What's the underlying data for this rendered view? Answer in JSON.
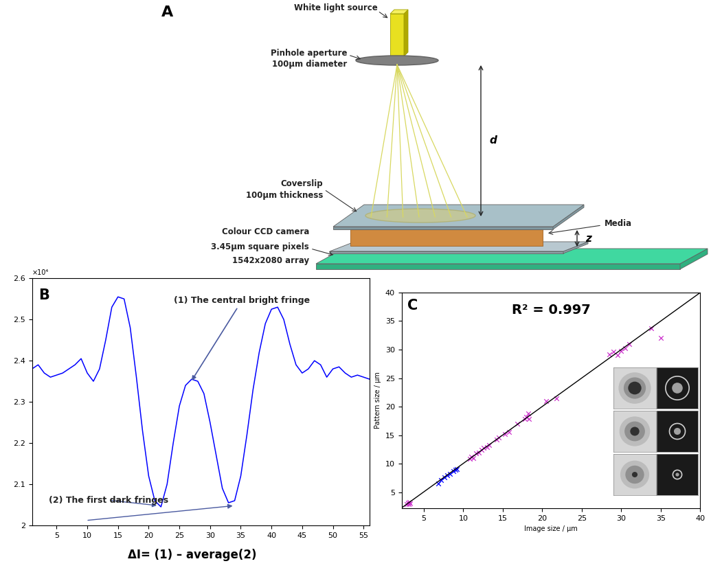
{
  "panel_a": {
    "label": "A",
    "source": "White light source",
    "pinhole": [
      "Pinhole aperture",
      "100µm diameter"
    ],
    "distance": "d",
    "coverslip": [
      "Coverslip",
      "100µm thickness"
    ],
    "media": "Media",
    "gap": "z",
    "camera": [
      "Colour CCD camera",
      "3.45µm square pixels",
      "1542x2080 array"
    ]
  },
  "chart_data": [
    {
      "type": "line",
      "panel_label": "B",
      "color": "#0000ff",
      "x": [
        1,
        2,
        3,
        4,
        5,
        6,
        7,
        8,
        9,
        10,
        11,
        12,
        13,
        14,
        15,
        16,
        17,
        18,
        19,
        20,
        21,
        22,
        23,
        24,
        25,
        26,
        27,
        28,
        29,
        30,
        31,
        32,
        33,
        34,
        35,
        36,
        37,
        38,
        39,
        40,
        41,
        42,
        43,
        44,
        45,
        46,
        47,
        48,
        49,
        50,
        51,
        52,
        53,
        54,
        55,
        56
      ],
      "values": [
        2.38,
        2.39,
        2.37,
        2.36,
        2.365,
        2.37,
        2.38,
        2.39,
        2.405,
        2.37,
        2.35,
        2.38,
        2.45,
        2.53,
        2.555,
        2.55,
        2.48,
        2.36,
        2.23,
        2.12,
        2.06,
        2.045,
        2.1,
        2.2,
        2.29,
        2.34,
        2.355,
        2.35,
        2.32,
        2.25,
        2.17,
        2.09,
        2.055,
        2.06,
        2.12,
        2.22,
        2.33,
        2.42,
        2.49,
        2.525,
        2.53,
        2.5,
        2.44,
        2.39,
        2.37,
        2.38,
        2.4,
        2.39,
        2.36,
        2.38,
        2.385,
        2.37,
        2.36,
        2.365,
        2.36,
        2.355
      ],
      "xlim": [
        1,
        56
      ],
      "xticks": [
        5,
        10,
        15,
        20,
        25,
        30,
        35,
        40,
        45,
        50,
        55
      ],
      "ylim": [
        2,
        2.6
      ],
      "yticks": [
        2,
        2.1,
        2.2,
        2.3,
        2.4,
        2.5,
        2.6
      ],
      "y_multiplier": "×10⁴",
      "annotations": [
        "(1) The central bright fringe",
        "(2) The first dark fringes"
      ],
      "formula": "ΔI= (1) – average(2)"
    },
    {
      "type": "scatter",
      "panel_label": "C",
      "annotation": "R² = 0.997",
      "x_label": "Image size / µm",
      "y_label": "Pattern size / µm",
      "xlim": [
        2.2,
        40
      ],
      "ylim": [
        2.2,
        40
      ],
      "xticks": [
        5,
        10,
        15,
        20,
        25,
        30,
        35,
        40
      ],
      "yticks": [
        5,
        10,
        15,
        20,
        25,
        30,
        35,
        40
      ],
      "series": [
        {
          "color": "#cc33cc",
          "marker": "x",
          "x": [
            2.8,
            3.0,
            3.1,
            3.2,
            3.3,
            10.8,
            11.0,
            11.3,
            11.6,
            12.0,
            12.3,
            12.6,
            13.0,
            13.3,
            14.2,
            14.5,
            15.3,
            15.8,
            16.8,
            17.8,
            18.0,
            18.2,
            18.3,
            20.5,
            21.8,
            28.5,
            29.0,
            29.5,
            30.0,
            30.5,
            31.0,
            33.8,
            35.0
          ],
          "values": [
            3.0,
            3.2,
            2.9,
            3.3,
            3.1,
            10.9,
            11.2,
            11.0,
            11.8,
            12.0,
            12.4,
            12.8,
            12.9,
            13.3,
            14.3,
            14.6,
            15.2,
            15.6,
            17.0,
            17.9,
            18.2,
            18.8,
            17.8,
            21.0,
            21.5,
            29.2,
            29.6,
            29.0,
            29.8,
            30.2,
            31.0,
            33.7,
            32.0
          ]
        },
        {
          "color": "#0000ff",
          "marker": "x",
          "x": [
            6.8,
            7.2,
            7.6,
            8.0,
            8.3,
            8.7,
            9.0,
            9.2
          ],
          "values": [
            6.6,
            7.2,
            7.6,
            8.0,
            8.2,
            8.7,
            9.0,
            9.1
          ]
        },
        {
          "type": "line",
          "color": "#000000",
          "x": [
            2.2,
            40
          ],
          "values": [
            2.3,
            40
          ]
        }
      ]
    }
  ]
}
